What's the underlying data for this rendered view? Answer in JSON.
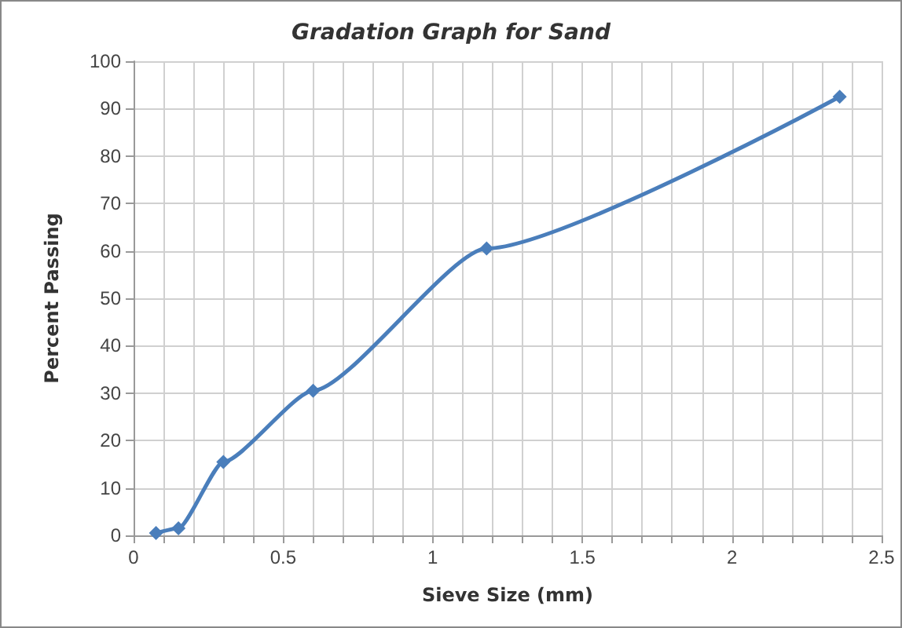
{
  "chart_data": {
    "type": "line",
    "title": "Gradation Graph for Sand",
    "xlabel": "Sieve Size (mm)",
    "ylabel": "Percent Passing",
    "x": [
      0.075,
      0.15,
      0.3,
      0.6,
      1.18,
      2.36
    ],
    "series": [
      {
        "color": "#4a7ebb",
        "values": [
          0.5,
          1.5,
          15.5,
          30.5,
          60.5,
          92.5
        ]
      }
    ],
    "xlim": [
      0,
      2.5
    ],
    "xticks": [
      0,
      {
        "value": 0.1,
        "label": null
      },
      {
        "value": 0.2,
        "label": null
      },
      {
        "value": 0.3,
        "label": null
      },
      {
        "value": 0.4,
        "label": null
      },
      0.5,
      {
        "value": 0.6,
        "label": null
      },
      {
        "value": 0.7,
        "label": null
      },
      {
        "value": 0.8,
        "label": null
      },
      {
        "value": 0.9,
        "label": null
      },
      1,
      {
        "value": 1.1,
        "label": null
      },
      {
        "value": 1.2,
        "label": null
      },
      {
        "value": 1.3,
        "label": null
      },
      {
        "value": 1.4,
        "label": null
      },
      1.5,
      {
        "value": 1.6,
        "label": null
      },
      {
        "value": 1.7,
        "label": null
      },
      {
        "value": 1.8,
        "label": null
      },
      {
        "value": 1.9,
        "label": null
      },
      2,
      {
        "value": 2.1,
        "label": null
      },
      {
        "value": 2.2,
        "label": null
      },
      {
        "value": 2.3,
        "label": null
      },
      {
        "value": 2.4,
        "label": null
      },
      2.5
    ],
    "ylim": [
      0,
      100
    ],
    "yticks": [
      0,
      10,
      20,
      30,
      40,
      50,
      60,
      70,
      80,
      90,
      100
    ],
    "grid": true,
    "marker": "diamond",
    "line_style": "solid"
  }
}
